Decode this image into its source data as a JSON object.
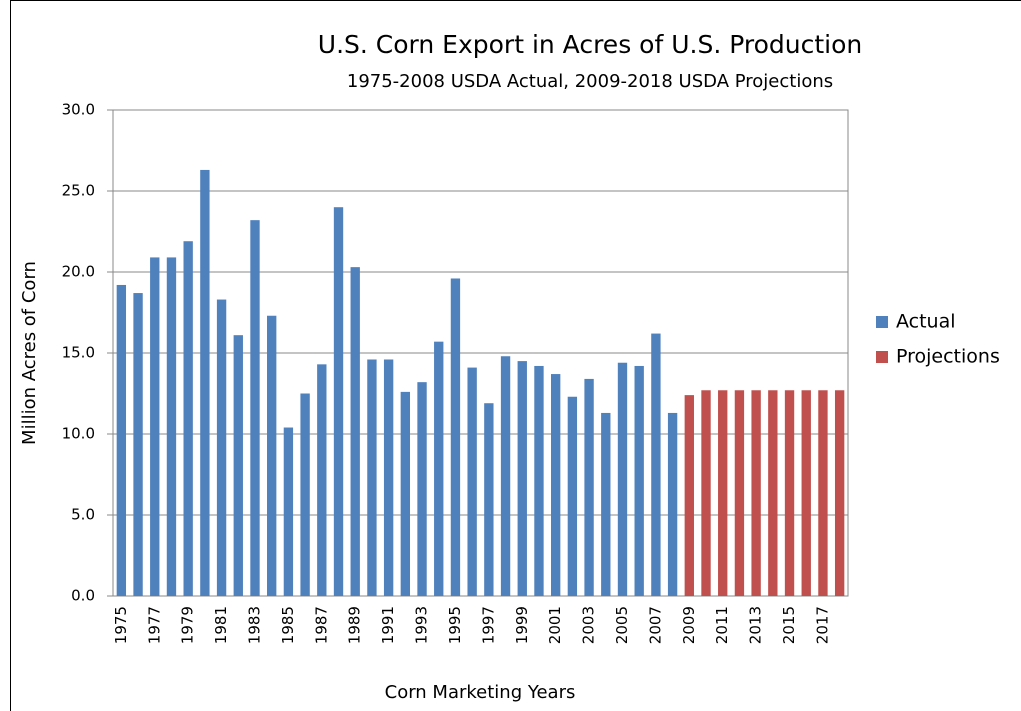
{
  "chart_data": {
    "type": "bar",
    "title": "U.S. Corn Export in Acres of U.S. Production",
    "subtitle": "1975-2008 USDA Actual, 2009-2018 USDA Projections",
    "x_label": "Corn Marketing Years",
    "y_label": "Million Acres of Corn",
    "categories": [
      "1975",
      null,
      "1977",
      null,
      "1979",
      null,
      "1981",
      null,
      "1983",
      null,
      "1985",
      null,
      "1987",
      null,
      "1989",
      null,
      "1991",
      null,
      "1993",
      null,
      "1995",
      null,
      "1997",
      null,
      "1999",
      null,
      "2001",
      null,
      "2003",
      null,
      "2005",
      null,
      "2007",
      null,
      "2009",
      null,
      "2011",
      null,
      "2013",
      null,
      "2015",
      null,
      "2017",
      null
    ],
    "series": [
      {
        "name": "Actual",
        "color": "#4f81bd",
        "values": [
          19.2,
          18.7,
          20.9,
          20.9,
          21.9,
          26.3,
          18.3,
          16.1,
          23.2,
          17.3,
          10.4,
          12.5,
          14.3,
          24.0,
          20.3,
          14.6,
          14.6,
          12.6,
          13.2,
          15.7,
          19.6,
          14.1,
          11.9,
          14.8,
          14.5,
          14.2,
          13.7,
          12.3,
          13.4,
          11.3,
          14.4,
          14.2,
          16.2,
          11.3,
          null,
          null,
          null,
          null,
          null,
          null,
          null,
          null,
          null,
          null
        ]
      },
      {
        "name": "Projections",
        "color": "#c0504d",
        "values": [
          null,
          null,
          null,
          null,
          null,
          null,
          null,
          null,
          null,
          null,
          null,
          null,
          null,
          null,
          null,
          null,
          null,
          null,
          null,
          null,
          null,
          null,
          null,
          null,
          null,
          null,
          null,
          null,
          null,
          null,
          null,
          null,
          null,
          null,
          12.4,
          12.7,
          12.7,
          12.7,
          12.7,
          12.7,
          12.7,
          12.7,
          12.7,
          12.7
        ]
      }
    ],
    "ylim": [
      0,
      30
    ],
    "yticks": [
      {
        "value": 0,
        "label": "0.0"
      },
      {
        "value": 5,
        "label": "5.0"
      },
      {
        "value": 10,
        "label": "10.0"
      },
      {
        "value": 15,
        "label": "15.0"
      },
      {
        "value": 20,
        "label": "20.0"
      },
      {
        "value": 25,
        "label": "25.0"
      },
      {
        "value": 30,
        "label": "30.0"
      }
    ],
    "grid": true,
    "legend": "right"
  }
}
